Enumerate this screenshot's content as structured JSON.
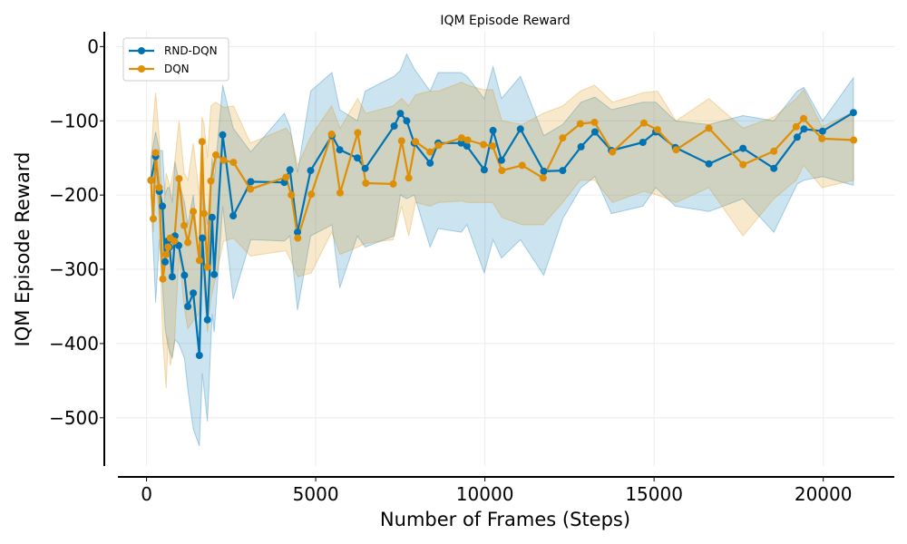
{
  "chart_data": {
    "type": "line",
    "title": "IQM Episode Reward",
    "xlabel": "Number of Frames (Steps)",
    "ylabel": "IQM Episode Reward",
    "xlim": [
      -900,
      22100
    ],
    "ylim": [
      -565,
      20
    ],
    "xticks": [
      0,
      5000,
      10000,
      15000,
      20000
    ],
    "xtick_labels": [
      "0",
      "5000",
      "10000",
      "15000",
      "20000"
    ],
    "yticks": [
      0,
      -100,
      -200,
      -300,
      -400,
      -500
    ],
    "ytick_labels": [
      "0",
      "−100",
      "−200",
      "−300",
      "−400",
      "−500"
    ],
    "grid": true,
    "legend_position": "top-left",
    "series": [
      {
        "name": "RND-DQN",
        "color": "#0173b2",
        "x": [
          130,
          270,
          380,
          470,
          550,
          620,
          680,
          760,
          840,
          950,
          1120,
          1220,
          1380,
          1560,
          1650,
          1800,
          1940,
          2000,
          2250,
          2560,
          3080,
          4070,
          4240,
          4460,
          4850,
          5480,
          5710,
          6230,
          6460,
          7320,
          7500,
          7690,
          7910,
          8380,
          8620,
          9300,
          9470,
          9980,
          10240,
          10490,
          11050,
          11740,
          12300,
          12840,
          13250,
          13740,
          14670,
          15050,
          15630,
          16620,
          17630,
          18540,
          19230,
          19430,
          19980,
          20890
        ],
        "y": [
          -180,
          -148,
          -195,
          -215,
          -290,
          -262,
          -270,
          -310,
          -255,
          -268,
          -308,
          -350,
          -332,
          -416,
          -258,
          -368,
          -230,
          -307,
          -119,
          -228,
          -182,
          -183,
          -166,
          -250,
          -167,
          -120,
          -139,
          -150,
          -164,
          -107,
          -90,
          -100,
          -130,
          -157,
          -130,
          -130,
          -134,
          -166,
          -113,
          -153,
          -111,
          -168,
          -167,
          -135,
          -115,
          -140,
          -129,
          -115,
          -136,
          -158,
          -137,
          -164,
          -122,
          -111,
          -114,
          -89
        ],
        "lower": [
          -200,
          -345,
          -260,
          -320,
          -380,
          -400,
          -410,
          -420,
          -395,
          -400,
          -420,
          -462,
          -515,
          -538,
          -440,
          -505,
          -360,
          -385,
          -215,
          -340,
          -260,
          -262,
          -255,
          -355,
          -255,
          -240,
          -325,
          -255,
          -270,
          -255,
          -200,
          -205,
          -200,
          -270,
          -245,
          -250,
          -240,
          -305,
          -260,
          -285,
          -260,
          -308,
          -232,
          -190,
          -175,
          -225,
          -215,
          -190,
          -215,
          -222,
          -205,
          -250,
          -185,
          -180,
          -175,
          -187
        ],
        "upper": [
          -150,
          -115,
          -140,
          -140,
          -200,
          -190,
          -190,
          -210,
          -155,
          -180,
          -210,
          -240,
          -200,
          -290,
          -180,
          -240,
          -150,
          -180,
          -52,
          -110,
          -142,
          -90,
          -108,
          -170,
          -60,
          -35,
          -85,
          -100,
          -60,
          -40,
          -32,
          -10,
          -30,
          -60,
          -35,
          -35,
          -40,
          -70,
          -27,
          -70,
          -40,
          -120,
          -105,
          -75,
          -68,
          -85,
          -75,
          -75,
          -100,
          -105,
          -93,
          -100,
          -60,
          -55,
          -100,
          -42
        ]
      },
      {
        "name": "DQN",
        "color": "#de8f05",
        "x": [
          130,
          200,
          270,
          370,
          480,
          580,
          640,
          700,
          820,
          960,
          1110,
          1220,
          1380,
          1560,
          1640,
          1700,
          1800,
          1900,
          2050,
          2280,
          2570,
          3070,
          4120,
          4280,
          4470,
          4870,
          5470,
          5720,
          6240,
          6480,
          7290,
          7540,
          7750,
          7950,
          8380,
          8630,
          9310,
          9490,
          9960,
          10230,
          10500,
          11100,
          11720,
          12300,
          12820,
          13240,
          13770,
          14700,
          15100,
          15650,
          16620,
          17630,
          18540,
          19200,
          19420,
          19960,
          20900
        ],
        "y": [
          -180,
          -232,
          -143,
          -190,
          -313,
          -280,
          -270,
          -258,
          -262,
          -178,
          -241,
          -264,
          -222,
          -288,
          -128,
          -225,
          -297,
          -181,
          -146,
          -153,
          -156,
          -192,
          -176,
          -200,
          -258,
          -199,
          -118,
          -197,
          -116,
          -184,
          -185,
          -127,
          -177,
          -128,
          -142,
          -133,
          -123,
          -126,
          -132,
          -134,
          -167,
          -160,
          -177,
          -123,
          -104,
          -102,
          -142,
          -103,
          -112,
          -139,
          -110,
          -159,
          -141,
          -108,
          -97,
          -124,
          -126
        ],
        "lower": [
          -195,
          -250,
          -170,
          -230,
          -395,
          -460,
          -390,
          -430,
          -400,
          -280,
          -350,
          -380,
          -370,
          -360,
          -300,
          -330,
          -385,
          -340,
          -310,
          -262,
          -258,
          -282,
          -275,
          -290,
          -310,
          -305,
          -250,
          -280,
          -270,
          -265,
          -260,
          -215,
          -255,
          -210,
          -215,
          -210,
          -208,
          -210,
          -210,
          -210,
          -230,
          -240,
          -240,
          -210,
          -180,
          -180,
          -210,
          -195,
          -200,
          -210,
          -190,
          -255,
          -205,
          -180,
          -160,
          -190,
          -180
        ],
        "upper": [
          -160,
          -100,
          -62,
          -120,
          -240,
          -170,
          -180,
          -190,
          -160,
          -100,
          -170,
          -180,
          -130,
          -200,
          -95,
          -105,
          -150,
          -80,
          -75,
          -82,
          -80,
          -130,
          -110,
          -120,
          -160,
          -120,
          -80,
          -110,
          -70,
          -90,
          -80,
          -70,
          -80,
          -65,
          -60,
          -60,
          -48,
          -52,
          -58,
          -58,
          -100,
          -105,
          -90,
          -80,
          -60,
          -52,
          -75,
          -62,
          -60,
          -100,
          -70,
          -110,
          -95,
          -70,
          -58,
          -108,
          -88
        ]
      }
    ]
  }
}
